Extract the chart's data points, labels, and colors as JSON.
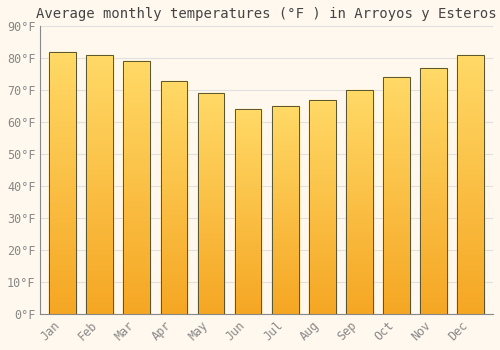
{
  "title": "Average monthly temperatures (°F ) in Arroyos y Esteros",
  "months": [
    "Jan",
    "Feb",
    "Mar",
    "Apr",
    "May",
    "Jun",
    "Jul",
    "Aug",
    "Sep",
    "Oct",
    "Nov",
    "Dec"
  ],
  "values": [
    82,
    81,
    79,
    73,
    69,
    64,
    65,
    67,
    70,
    74,
    77,
    81
  ],
  "bar_color_bottom": "#F5A623",
  "bar_color_top": "#FFD966",
  "bar_edge_color": "#555533",
  "background_color": "#FFF8EE",
  "grid_color": "#E0E0E0",
  "ylim": [
    0,
    90
  ],
  "yticks": [
    0,
    10,
    20,
    30,
    40,
    50,
    60,
    70,
    80,
    90
  ],
  "ytick_labels": [
    "0°F",
    "10°F",
    "20°F",
    "30°F",
    "40°F",
    "50°F",
    "60°F",
    "70°F",
    "80°F",
    "90°F"
  ],
  "title_fontsize": 10,
  "tick_fontsize": 8.5,
  "font_family": "monospace"
}
